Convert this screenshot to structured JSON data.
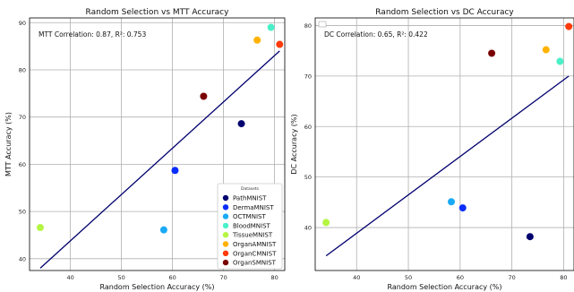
{
  "chart_data": [
    {
      "type": "scatter",
      "title": "Random Selection vs MTT Accuracy",
      "xlabel": "Random Selection Accuracy (%)",
      "ylabel": "MTT Accuracy (%)",
      "xlim": [
        32,
        82
      ],
      "ylim": [
        37.5,
        91
      ],
      "xticks": [
        40,
        50,
        60,
        70,
        80
      ],
      "yticks": [
        40,
        50,
        60,
        70,
        80,
        90
      ],
      "grid": true,
      "annotation": "MTT Correlation: 0.87, R²: 0.753",
      "legend": {
        "title": "Datasets",
        "position": "lower-right",
        "entries": [
          "PathMNIST",
          "DermaMNIST",
          "OCTMNIST",
          "BloodMNIST",
          "TissueMNIST",
          "OrganAMNIST",
          "OrganCMNIST",
          "OrganSMNIST"
        ]
      },
      "points": [
        {
          "name": "PathMNIST",
          "x": 73.5,
          "y": 68.6,
          "color": "#00006e"
        },
        {
          "name": "DermaMNIST",
          "x": 60.5,
          "y": 58.7,
          "color": "#0a2cff"
        },
        {
          "name": "OCTMNIST",
          "x": 58.3,
          "y": 46.1,
          "color": "#1aaaf5"
        },
        {
          "name": "BloodMNIST",
          "x": 79.3,
          "y": 89.0,
          "color": "#4af0c8"
        },
        {
          "name": "TissueMNIST",
          "x": 34.1,
          "y": 46.6,
          "color": "#b4f544"
        },
        {
          "name": "OrganAMNIST",
          "x": 76.6,
          "y": 86.3,
          "color": "#ffb300"
        },
        {
          "name": "OrganCMNIST",
          "x": 81.0,
          "y": 85.4,
          "color": "#ff3a0a"
        },
        {
          "name": "OrganSMNIST",
          "x": 66.1,
          "y": 74.4,
          "color": "#7a0000"
        }
      ],
      "fit_line": {
        "x": [
          34.1,
          81.0
        ],
        "y": [
          38.0,
          84.0
        ],
        "color": "#00006e"
      }
    },
    {
      "type": "scatter",
      "title": "Random Selection vs DC Accuracy",
      "xlabel": "Random Selection Accuracy (%)",
      "ylabel": "DC Accuracy (%)",
      "xlim": [
        32,
        82
      ],
      "ylim": [
        31.5,
        81.5
      ],
      "xticks": [
        40,
        50,
        60,
        70,
        80
      ],
      "yticks": [
        40,
        50,
        60,
        70,
        80
      ],
      "grid": true,
      "annotation": "DC Correlation: 0.65, R²: 0.422",
      "legend": {
        "position": "upper-left",
        "entries": [
          ""
        ]
      },
      "points": [
        {
          "name": "PathMNIST",
          "x": 73.5,
          "y": 38.2,
          "color": "#00006e"
        },
        {
          "name": "DermaMNIST",
          "x": 60.5,
          "y": 43.9,
          "color": "#0a2cff"
        },
        {
          "name": "OCTMNIST",
          "x": 58.3,
          "y": 45.1,
          "color": "#1aaaf5"
        },
        {
          "name": "BloodMNIST",
          "x": 79.3,
          "y": 72.9,
          "color": "#4af0c8"
        },
        {
          "name": "TissueMNIST",
          "x": 34.1,
          "y": 41.0,
          "color": "#b4f544"
        },
        {
          "name": "OrganAMNIST",
          "x": 76.6,
          "y": 75.2,
          "color": "#ffb300"
        },
        {
          "name": "OrganCMNIST",
          "x": 81.0,
          "y": 79.8,
          "color": "#ff3a0a"
        },
        {
          "name": "OrganSMNIST",
          "x": 66.1,
          "y": 74.5,
          "color": "#7a0000"
        }
      ],
      "fit_line": {
        "x": [
          34.1,
          81.0
        ],
        "y": [
          34.4,
          70.0
        ],
        "color": "#00006e"
      }
    }
  ]
}
